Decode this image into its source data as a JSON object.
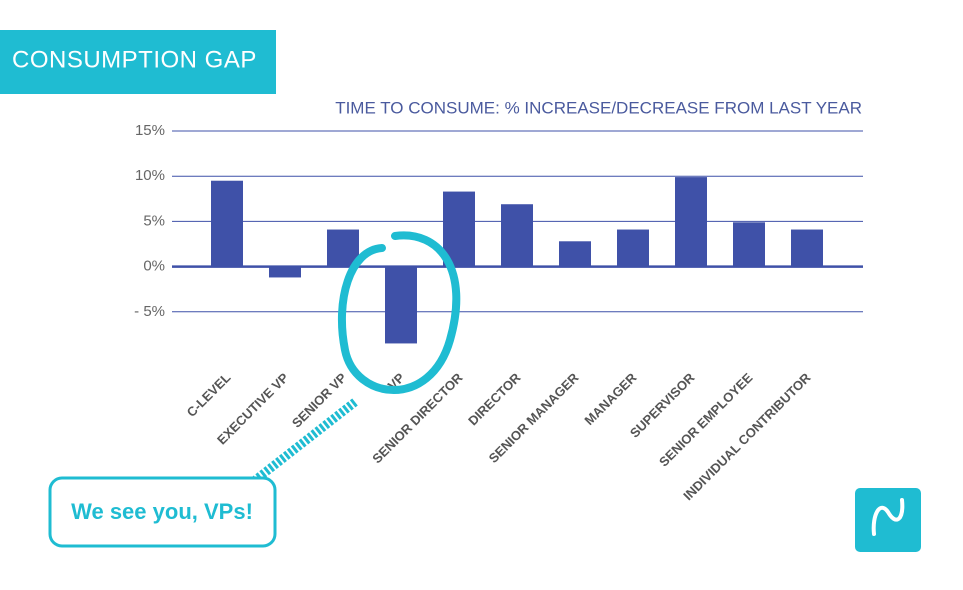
{
  "header": "CONSUMPTION GAP",
  "annotation": "We see you, VPs!",
  "chart_data": {
    "type": "bar",
    "title": "TIME TO CONSUME: % INCREASE/DECREASE FROM LAST YEAR",
    "categories": [
      "C-LEVEL",
      "EXECUTIVE VP",
      "SENIOR VP",
      "VP",
      "SENIOR DIRECTOR",
      "DIRECTOR",
      "SENIOR MANAGER",
      "MANAGER",
      "SUPERVISOR",
      "SENIOR EMPLOYEE",
      "INDIVIDUAL CONTRIBUTOR"
    ],
    "values": [
      9.5,
      -1.2,
      4.1,
      -8.5,
      8.3,
      6.9,
      2.8,
      4.1,
      9.9,
      4.9,
      4.1
    ],
    "color": "#3f51a8",
    "ylim": [
      -10,
      15
    ],
    "yticks": [
      {
        "value": 15,
        "label": "15%"
      },
      {
        "value": 10,
        "label": "10%"
      },
      {
        "value": 5,
        "label": "5%"
      },
      {
        "value": 0,
        "label": "0%"
      },
      {
        "value": -5,
        "label": "- 5%"
      }
    ],
    "grid": true
  }
}
